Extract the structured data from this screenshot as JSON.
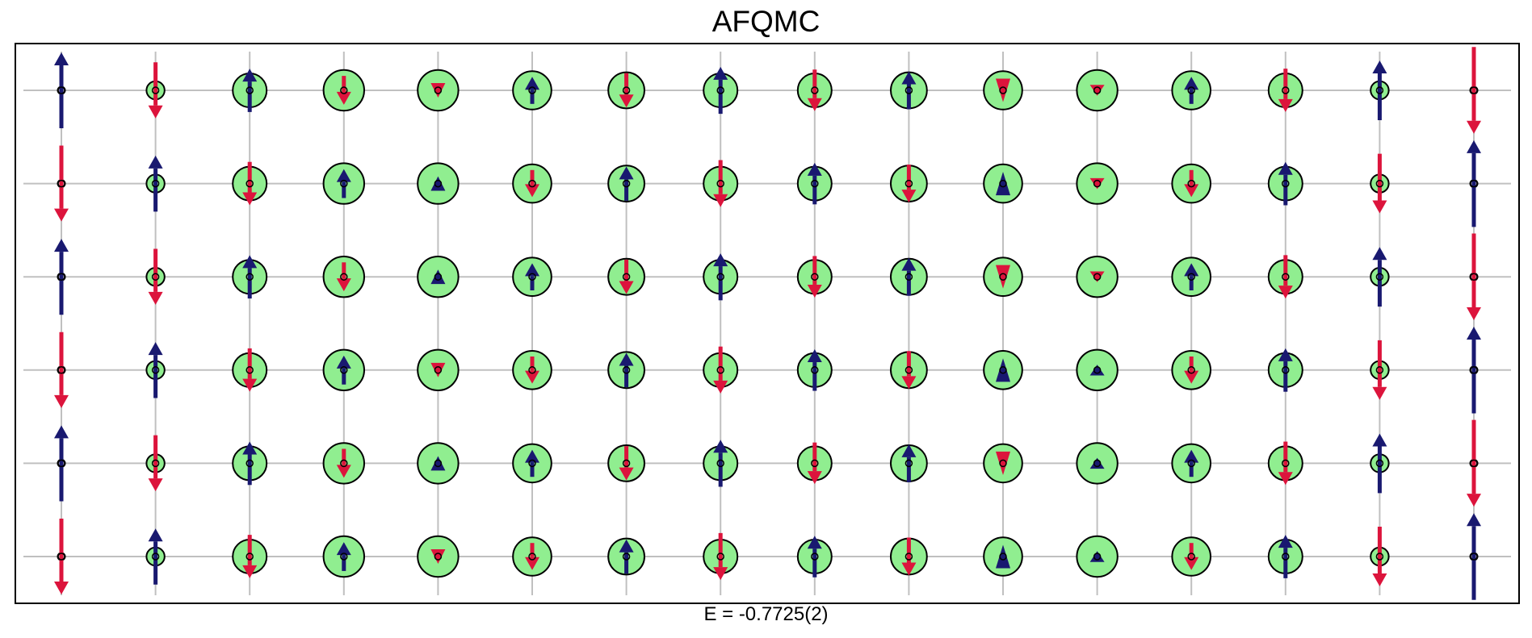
{
  "title": "AFQMC",
  "caption": "E = -0.7725(2)",
  "colors": {
    "up": "#191970",
    "down": "#dc143c",
    "charge_fill": "#90ee90",
    "grid": "#c0c0c0",
    "frame": "#000000"
  },
  "lattice": {
    "columns": 16,
    "rows": 6,
    "sites": [
      [
        {
          "spin": 0.84,
          "charge": 0.0
        },
        {
          "spin": -0.62,
          "charge": 0.4
        },
        {
          "spin": 0.48,
          "charge": 0.75
        },
        {
          "spin": -0.32,
          "charge": 0.9
        },
        {
          "spin": -0.16,
          "charge": 0.9
        },
        {
          "spin": 0.3,
          "charge": 0.85
        },
        {
          "spin": -0.38,
          "charge": 0.8
        },
        {
          "spin": 0.52,
          "charge": 0.75
        },
        {
          "spin": -0.46,
          "charge": 0.75
        },
        {
          "spin": 0.42,
          "charge": 0.8
        },
        {
          "spin": -0.26,
          "charge": 0.85
        },
        {
          "spin": -0.12,
          "charge": 0.9
        },
        {
          "spin": 0.3,
          "charge": 0.85
        },
        {
          "spin": -0.48,
          "charge": 0.75
        },
        {
          "spin": 0.66,
          "charge": 0.4
        },
        {
          "spin": -0.96,
          "charge": 0.0
        }
      ],
      [
        {
          "spin": -0.84,
          "charge": 0.0
        },
        {
          "spin": 0.62,
          "charge": 0.4
        },
        {
          "spin": -0.48,
          "charge": 0.75
        },
        {
          "spin": 0.32,
          "charge": 0.9
        },
        {
          "spin": 0.16,
          "charge": 0.9
        },
        {
          "spin": -0.3,
          "charge": 0.85
        },
        {
          "spin": 0.38,
          "charge": 0.8
        },
        {
          "spin": -0.52,
          "charge": 0.75
        },
        {
          "spin": 0.46,
          "charge": 0.75
        },
        {
          "spin": -0.42,
          "charge": 0.8
        },
        {
          "spin": 0.26,
          "charge": 0.85
        },
        {
          "spin": -0.12,
          "charge": 0.9
        },
        {
          "spin": -0.3,
          "charge": 0.85
        },
        {
          "spin": 0.48,
          "charge": 0.75
        },
        {
          "spin": -0.66,
          "charge": 0.4
        },
        {
          "spin": 0.96,
          "charge": 0.0
        }
      ],
      [
        {
          "spin": 0.84,
          "charge": 0.0
        },
        {
          "spin": -0.62,
          "charge": 0.4
        },
        {
          "spin": 0.48,
          "charge": 0.75
        },
        {
          "spin": -0.32,
          "charge": 0.9
        },
        {
          "spin": 0.16,
          "charge": 0.9
        },
        {
          "spin": 0.3,
          "charge": 0.85
        },
        {
          "spin": -0.38,
          "charge": 0.8
        },
        {
          "spin": 0.52,
          "charge": 0.75
        },
        {
          "spin": -0.46,
          "charge": 0.75
        },
        {
          "spin": 0.42,
          "charge": 0.8
        },
        {
          "spin": -0.26,
          "charge": 0.85
        },
        {
          "spin": -0.12,
          "charge": 0.9
        },
        {
          "spin": 0.3,
          "charge": 0.85
        },
        {
          "spin": -0.48,
          "charge": 0.75
        },
        {
          "spin": 0.66,
          "charge": 0.4
        },
        {
          "spin": -0.96,
          "charge": 0.0
        }
      ],
      [
        {
          "spin": -0.84,
          "charge": 0.0
        },
        {
          "spin": 0.62,
          "charge": 0.4
        },
        {
          "spin": -0.48,
          "charge": 0.75
        },
        {
          "spin": 0.32,
          "charge": 0.9
        },
        {
          "spin": -0.16,
          "charge": 0.9
        },
        {
          "spin": -0.3,
          "charge": 0.85
        },
        {
          "spin": 0.38,
          "charge": 0.8
        },
        {
          "spin": -0.52,
          "charge": 0.75
        },
        {
          "spin": 0.46,
          "charge": 0.75
        },
        {
          "spin": -0.42,
          "charge": 0.8
        },
        {
          "spin": 0.26,
          "charge": 0.85
        },
        {
          "spin": 0.12,
          "charge": 0.9
        },
        {
          "spin": -0.3,
          "charge": 0.85
        },
        {
          "spin": 0.48,
          "charge": 0.75
        },
        {
          "spin": -0.66,
          "charge": 0.4
        },
        {
          "spin": 0.96,
          "charge": 0.0
        }
      ],
      [
        {
          "spin": 0.84,
          "charge": 0.0
        },
        {
          "spin": -0.62,
          "charge": 0.4
        },
        {
          "spin": 0.48,
          "charge": 0.75
        },
        {
          "spin": -0.32,
          "charge": 0.9
        },
        {
          "spin": 0.16,
          "charge": 0.9
        },
        {
          "spin": 0.3,
          "charge": 0.85
        },
        {
          "spin": -0.38,
          "charge": 0.8
        },
        {
          "spin": 0.52,
          "charge": 0.75
        },
        {
          "spin": -0.46,
          "charge": 0.75
        },
        {
          "spin": 0.42,
          "charge": 0.8
        },
        {
          "spin": -0.26,
          "charge": 0.85
        },
        {
          "spin": 0.12,
          "charge": 0.9
        },
        {
          "spin": 0.3,
          "charge": 0.85
        },
        {
          "spin": -0.48,
          "charge": 0.75
        },
        {
          "spin": 0.66,
          "charge": 0.4
        },
        {
          "spin": -0.96,
          "charge": 0.0
        }
      ],
      [
        {
          "spin": -0.84,
          "charge": 0.0
        },
        {
          "spin": 0.62,
          "charge": 0.4
        },
        {
          "spin": -0.48,
          "charge": 0.75
        },
        {
          "spin": 0.32,
          "charge": 0.9
        },
        {
          "spin": -0.16,
          "charge": 0.9
        },
        {
          "spin": -0.3,
          "charge": 0.85
        },
        {
          "spin": 0.38,
          "charge": 0.8
        },
        {
          "spin": -0.52,
          "charge": 0.75
        },
        {
          "spin": 0.46,
          "charge": 0.75
        },
        {
          "spin": -0.42,
          "charge": 0.8
        },
        {
          "spin": 0.26,
          "charge": 0.85
        },
        {
          "spin": 0.12,
          "charge": 0.9
        },
        {
          "spin": -0.3,
          "charge": 0.85
        },
        {
          "spin": 0.48,
          "charge": 0.75
        },
        {
          "spin": -0.66,
          "charge": 0.4
        },
        {
          "spin": 0.96,
          "charge": 0.0
        }
      ]
    ]
  }
}
